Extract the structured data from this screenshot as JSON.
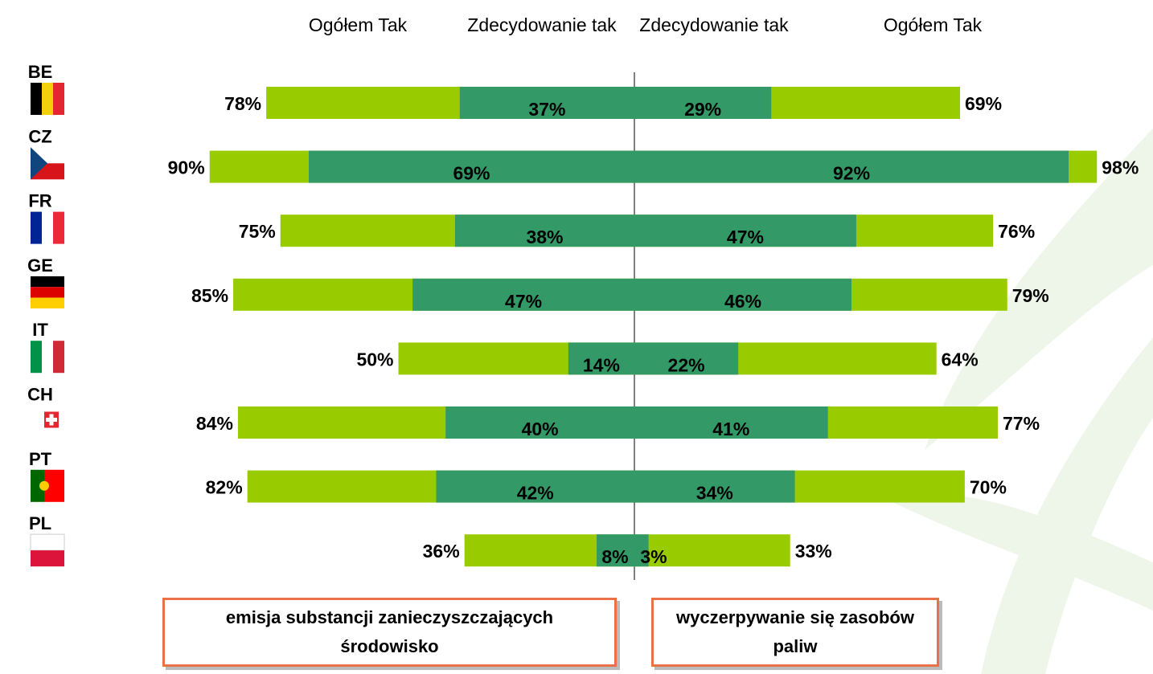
{
  "chart_data": {
    "type": "diverging-bar",
    "categories": [
      "BE",
      "CZ",
      "FR",
      "GE",
      "IT",
      "CH",
      "PT",
      "PL"
    ],
    "xlim": [
      0,
      100
    ],
    "series": [
      {
        "name": "Ogółem Tak",
        "side": "left",
        "color": "#99cc00",
        "values": [
          78,
          90,
          75,
          85,
          50,
          84,
          82,
          36
        ],
        "value_labels": [
          "78%",
          "90%",
          "75%",
          "85%",
          "50%",
          "84%",
          "82%",
          "36%"
        ]
      },
      {
        "name": "Zdecydowanie tak",
        "side": "left",
        "color": "#339966",
        "values": [
          37,
          69,
          38,
          47,
          14,
          40,
          42,
          8
        ],
        "value_labels": [
          "37%",
          "69%",
          "38%",
          "47%",
          "14%",
          "40%",
          "42%",
          "8%"
        ]
      },
      {
        "name": "Zdecydowanie tak",
        "side": "right",
        "color": "#339966",
        "values": [
          29,
          92,
          47,
          46,
          22,
          41,
          34,
          3
        ],
        "value_labels": [
          "29%",
          "92%",
          "47%",
          "46%",
          "22%",
          "41%",
          "34%",
          "3%"
        ]
      },
      {
        "name": "Ogółem Tak",
        "side": "right",
        "color": "#99cc00",
        "values": [
          69,
          98,
          76,
          79,
          64,
          77,
          70,
          33
        ],
        "value_labels": [
          "69%",
          "98%",
          "76%",
          "79%",
          "64%",
          "77%",
          "70%",
          "33%"
        ]
      }
    ],
    "groups": [
      {
        "side": "left",
        "label": "emisja substancji zanieczyszczających środowisko"
      },
      {
        "side": "right",
        "label": "wyczerpywanie się zasobów paliw"
      }
    ]
  }
}
